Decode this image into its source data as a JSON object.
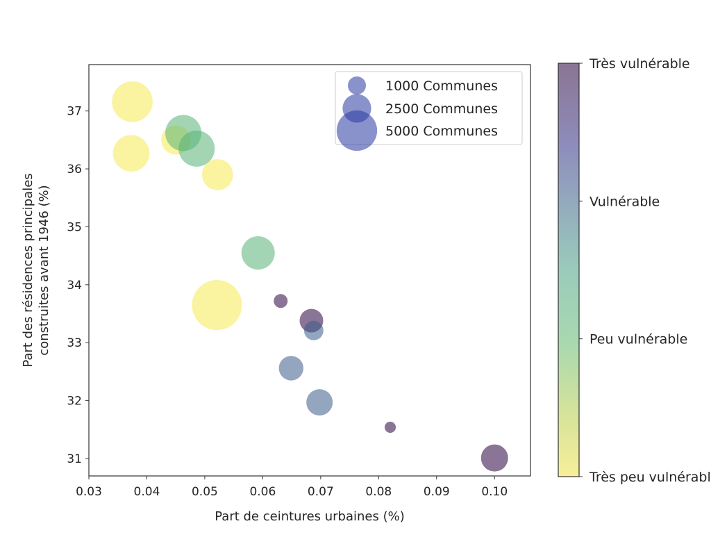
{
  "chart_data": {
    "type": "scatter",
    "title": "",
    "xlabel": "Part de ceintures urbaines (%)",
    "ylabel": [
      "Part des résidences principales",
      "construites avant 1946 (%)"
    ],
    "xlim": [
      0.03,
      0.1062
    ],
    "ylim": [
      30.7,
      37.8
    ],
    "xticks": [
      0.03,
      0.04,
      0.05,
      0.06,
      0.07,
      0.08,
      0.09,
      0.1
    ],
    "xtick_labels": [
      "0.03",
      "0.04",
      "0.05",
      "0.06",
      "0.07",
      "0.08",
      "0.09",
      "0.10"
    ],
    "yticks": [
      31,
      32,
      33,
      34,
      35,
      36,
      37
    ],
    "ytick_labels": [
      "31",
      "32",
      "33",
      "34",
      "35",
      "36",
      "37"
    ],
    "grid": false,
    "size_encoding": "Communes",
    "color_encoding": "vulnérabilité",
    "points": [
      {
        "x": 0.0375,
        "y": 37.16,
        "size": 5050,
        "category": 0
      },
      {
        "x": 0.0373,
        "y": 36.27,
        "size": 4070,
        "category": 0
      },
      {
        "x": 0.045,
        "y": 36.5,
        "size": 2590,
        "category": 0
      },
      {
        "x": 0.0463,
        "y": 36.62,
        "size": 3980,
        "category": 1
      },
      {
        "x": 0.0486,
        "y": 36.35,
        "size": 3980,
        "category": 1
      },
      {
        "x": 0.0522,
        "y": 35.9,
        "size": 2930,
        "category": 0
      },
      {
        "x": 0.0592,
        "y": 34.55,
        "size": 3390,
        "category": 1
      },
      {
        "x": 0.0521,
        "y": 33.65,
        "size": 7620,
        "category": 0
      },
      {
        "x": 0.0631,
        "y": 33.72,
        "size": 590,
        "category": 3
      },
      {
        "x": 0.0684,
        "y": 33.38,
        "size": 1700,
        "category": 3
      },
      {
        "x": 0.0688,
        "y": 33.21,
        "size": 1150,
        "category": 2
      },
      {
        "x": 0.0649,
        "y": 32.56,
        "size": 1840,
        "category": 2
      },
      {
        "x": 0.0698,
        "y": 31.97,
        "size": 2120,
        "category": 2
      },
      {
        "x": 0.082,
        "y": 31.54,
        "size": 380,
        "category": 3
      },
      {
        "x": 0.1,
        "y": 31.01,
        "size": 2240,
        "category": 3
      }
    ],
    "category_colors": [
      "#f5e952",
      "#57b276",
      "#3c5b8c",
      "#2a0440"
    ],
    "legend": {
      "placement": "top-right",
      "color": "#2a38a2",
      "entries": [
        {
          "label": "1000 Communes",
          "size": 1000
        },
        {
          "label": "2500 Communes",
          "size": 2500
        },
        {
          "label": "5000 Communes",
          "size": 5000
        }
      ]
    },
    "colorbar": {
      "placement": "right",
      "ticks": [
        {
          "value": 3,
          "label": "Très vulnérable"
        },
        {
          "value": 2,
          "label": "Vulnérable"
        },
        {
          "value": 1,
          "label": "Peu vulnérable"
        },
        {
          "value": 0,
          "label": "Très peu vulnérable"
        }
      ]
    }
  }
}
